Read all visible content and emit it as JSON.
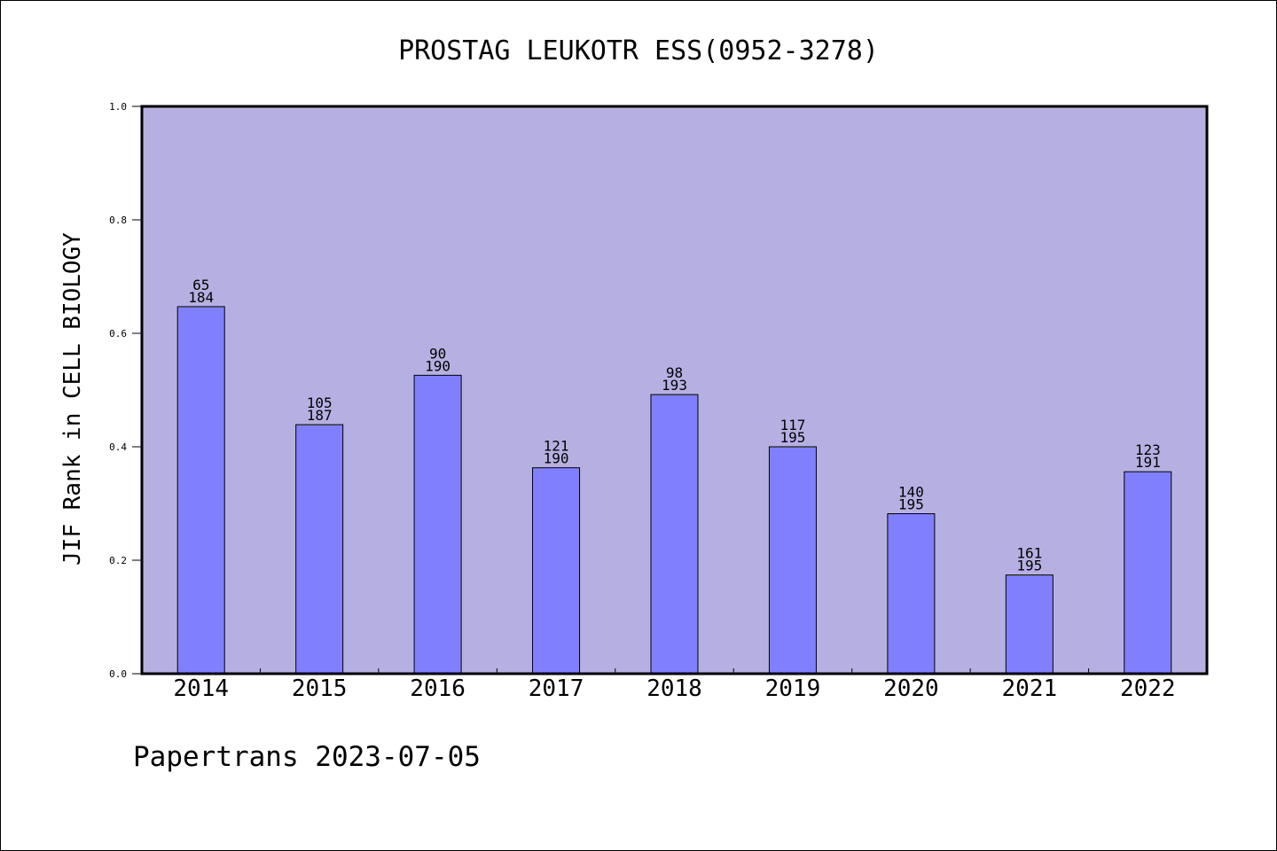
{
  "chart_data": {
    "type": "bar",
    "title": "PROSTAG LEUKOTR ESS(0952-3278)",
    "xlabel": "",
    "ylabel": "JIF Rank in CELL BIOLOGY",
    "ylim": [
      0,
      1.0
    ],
    "yticks": [
      "0.0",
      "0.2",
      "0.4",
      "0.6",
      "0.8",
      "1.0"
    ],
    "yticks_values": [
      0,
      0.2,
      0.4,
      0.6,
      0.8,
      1.0
    ],
    "categories": [
      "2014",
      "2015",
      "2016",
      "2017",
      "2018",
      "2019",
      "2020",
      "2021",
      "2022"
    ],
    "values": [
      0.647,
      0.439,
      0.526,
      0.363,
      0.492,
      0.4,
      0.282,
      0.174,
      0.356
    ],
    "labels_rank": [
      "65",
      "105",
      "90",
      "121",
      "98",
      "117",
      "140",
      "161",
      "123"
    ],
    "labels_total": [
      "184",
      "187",
      "190",
      "190",
      "193",
      "195",
      "195",
      "195",
      "191"
    ],
    "grid": false,
    "plot_background": "#b6b0e2",
    "bar_color": "#8080ff"
  },
  "footer": "Papertrans 2023-07-05"
}
